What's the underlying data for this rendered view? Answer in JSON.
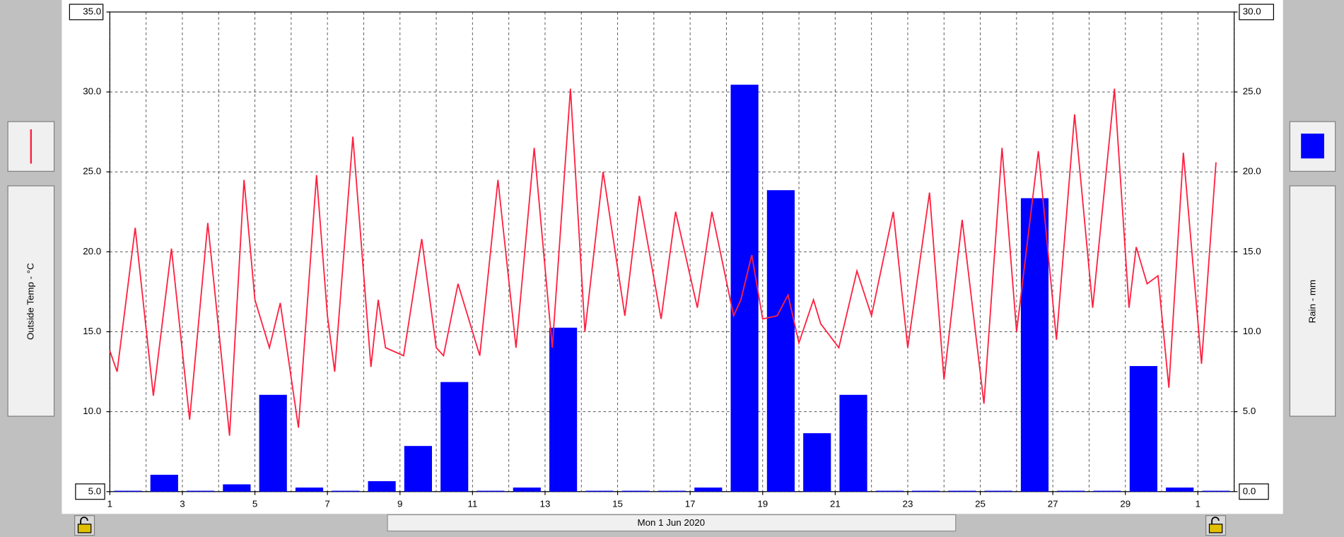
{
  "chart_data": {
    "type": "combo",
    "ylabel": "Outside Temp - °C",
    "y2label": "Rain - mm",
    "xlabel": "Mon 1 Jun 2020",
    "xlim": [
      1,
      32
    ],
    "xticks": [
      1,
      3,
      5,
      7,
      9,
      11,
      13,
      15,
      17,
      19,
      21,
      23,
      25,
      27,
      29,
      {
        "value": 31,
        "label": "1"
      }
    ],
    "ylim": [
      5,
      35
    ],
    "yticks": [
      {
        "value": 5,
        "label": "5.0"
      },
      {
        "value": 10,
        "label": "10.0"
      },
      {
        "value": 15,
        "label": "15.0"
      },
      {
        "value": 20,
        "label": "20.0"
      },
      {
        "value": 25,
        "label": "25.0"
      },
      {
        "value": 30,
        "label": "30.0"
      },
      {
        "value": 35,
        "label": "35.0"
      }
    ],
    "y2lim": [
      0,
      30
    ],
    "y2ticks": [
      {
        "value": 0,
        "label": "0.0"
      },
      {
        "value": 5,
        "label": "5.0"
      },
      {
        "value": 10,
        "label": "10.0"
      },
      {
        "value": 15,
        "label": "15.0"
      },
      {
        "value": 20,
        "label": "20.0"
      },
      {
        "value": 25,
        "label": "25.0"
      },
      {
        "value": 30,
        "label": "30.0"
      }
    ],
    "grid": true,
    "series": [
      {
        "type": "bar",
        "axis": "y2",
        "color": "#0000ff",
        "x": [
          1,
          2,
          3,
          4,
          5,
          6,
          7,
          8,
          9,
          10,
          11,
          12,
          13,
          14,
          15,
          16,
          17,
          18,
          19,
          20,
          21,
          22,
          23,
          24,
          25,
          26,
          27,
          28,
          29,
          30,
          31
        ],
        "values": [
          0,
          1.0,
          0,
          0.4,
          6.0,
          0.2,
          0,
          0.6,
          2.8,
          6.8,
          0,
          0.2,
          10.2,
          0,
          0,
          0,
          0.2,
          25.4,
          18.8,
          3.6,
          6.0,
          0,
          0,
          0,
          0,
          18.3,
          0,
          0,
          7.8,
          0.2,
          0
        ]
      },
      {
        "type": "line",
        "color": "#ff2040",
        "x": [
          1,
          1.2,
          1.7,
          2.2,
          2.7,
          3.2,
          3.7,
          4.3,
          4.7,
          5.0,
          5.4,
          5.7,
          6.2,
          6.7,
          7.0,
          7.2,
          7.7,
          8.2,
          8.4,
          8.6,
          9.1,
          9.6,
          10.0,
          10.2,
          10.6,
          11.2,
          11.7,
          12.2,
          12.7,
          13.2,
          13.7,
          14.1,
          14.6,
          15.2,
          15.6,
          16.2,
          16.6,
          17.2,
          17.6,
          18.2,
          18.4,
          18.7,
          19.0,
          19.4,
          19.7,
          20.0,
          20.4,
          20.6,
          21.1,
          21.6,
          22.0,
          22.6,
          23.0,
          23.6,
          24.0,
          24.5,
          25.1,
          25.6,
          26.0,
          26.6,
          27.1,
          27.6,
          28.1,
          28.7,
          29.1,
          29.3,
          29.6,
          29.9,
          30.2,
          30.6,
          31.1,
          31.5
        ],
        "values": [
          13.8,
          12.5,
          21.5,
          11,
          20.2,
          9.5,
          21.8,
          8.5,
          24.5,
          17,
          14,
          16.8,
          9,
          24.8,
          16,
          12.5,
          27.2,
          12.8,
          17,
          14,
          13.5,
          20.8,
          14,
          13.5,
          18,
          13.5,
          24.5,
          14,
          26.5,
          14,
          30.2,
          15,
          25,
          16,
          23.5,
          15.8,
          22.5,
          16.5,
          22.5,
          16,
          17,
          19.8,
          15.8,
          16,
          17.3,
          14.3,
          17,
          15.5,
          14,
          18.8,
          16,
          22.5,
          14,
          23.7,
          12,
          22,
          10.5,
          26.5,
          15,
          26.3,
          14.5,
          28.6,
          16.5,
          30.2,
          16.5,
          20.3,
          18,
          18.5,
          11.5,
          26.2,
          13,
          25.6
        ]
      }
    ]
  }
}
